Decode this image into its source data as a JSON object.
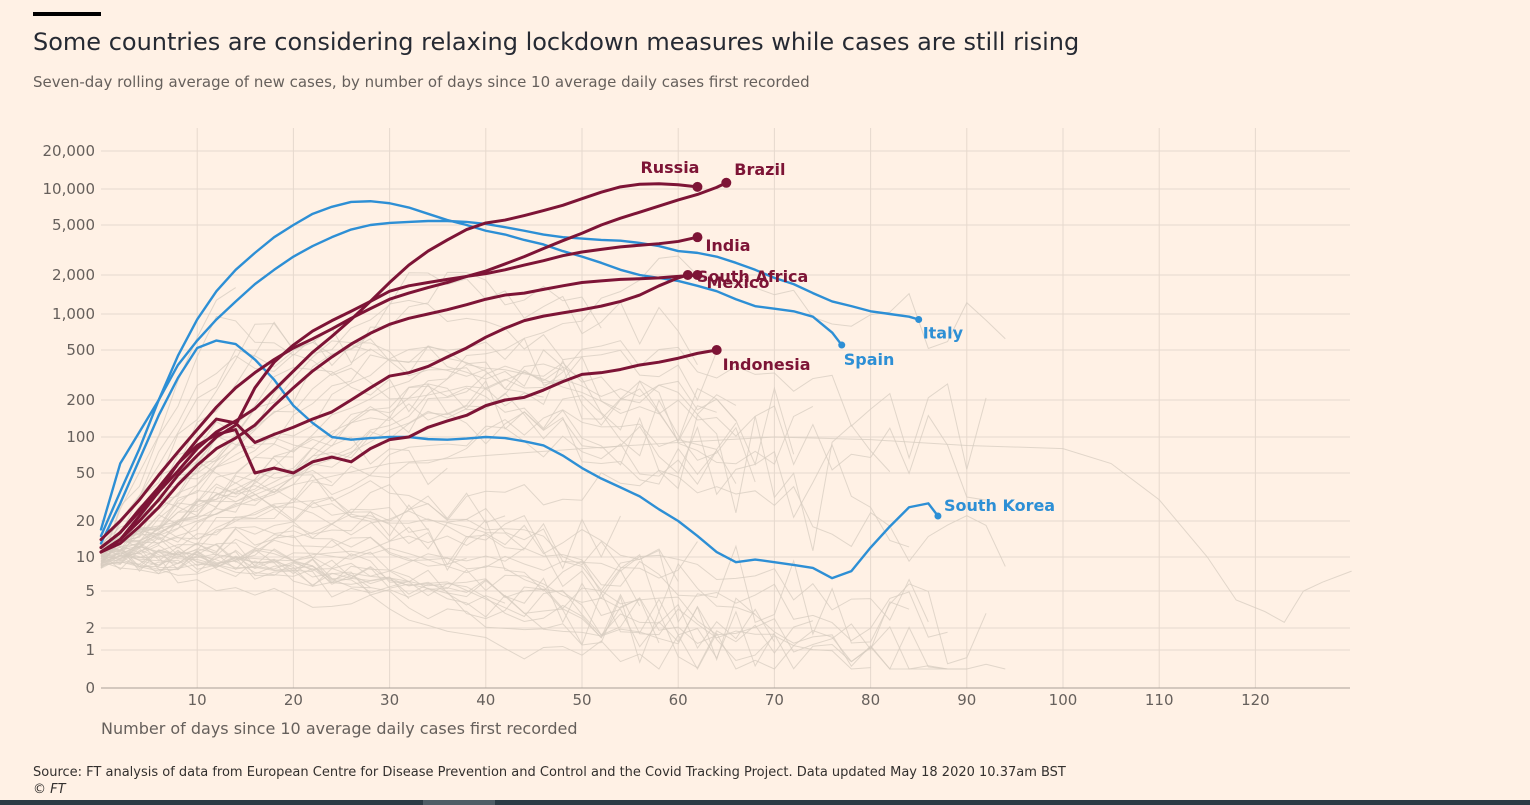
{
  "header": {
    "title": "Some countries are considering relaxing lockdown measures while cases are still rising",
    "subtitle": "Seven-day rolling average of new cases, by number of days since 10 average daily cases first recorded"
  },
  "footer": {
    "source": "Source: FT analysis of data from European Centre for Disease Prevention and Control and the Covid Tracking Project. Data updated May 18 2020 10.37am BST",
    "copyright": "© FT"
  },
  "colors": {
    "background": "#fff1e5",
    "highlight": "#7d1436",
    "comparison": "#2d8fd5",
    "background_lines": "#d7ccc0",
    "grid": "#e6d9ce",
    "axis": "#66605c"
  },
  "chart_data": {
    "type": "line",
    "title": "Some countries are considering relaxing lockdown measures while cases are still rising",
    "subtitle": "Seven-day rolling average of new cases, by number of days since 10 average daily cases first recorded",
    "xlabel": "Number of days since 10 average daily cases first recorded",
    "ylabel": "",
    "yscale": "log",
    "xlim": [
      0,
      130
    ],
    "ylim": [
      0,
      20000
    ],
    "x_ticks": [
      10,
      20,
      30,
      40,
      50,
      60,
      70,
      80,
      90,
      100,
      110,
      120
    ],
    "y_ticks": [
      {
        "value": 20000,
        "label": "20,000"
      },
      {
        "value": 10000,
        "label": "10,000"
      },
      {
        "value": 5000,
        "label": "5,000"
      },
      {
        "value": 2000,
        "label": "2,000"
      },
      {
        "value": 1000,
        "label": "1,000"
      },
      {
        "value": 500,
        "label": "500"
      },
      {
        "value": 200,
        "label": "200"
      },
      {
        "value": 100,
        "label": "100"
      },
      {
        "value": 50,
        "label": "50"
      },
      {
        "value": 20,
        "label": "20"
      },
      {
        "value": 10,
        "label": "10"
      },
      {
        "value": 5,
        "label": "5"
      },
      {
        "value": 2,
        "label": "2"
      },
      {
        "value": 1,
        "label": "1"
      },
      {
        "value": 0,
        "label": "0"
      }
    ],
    "highlighted_series": [
      {
        "name": "Russia",
        "group": "highlight",
        "x": [
          0,
          2,
          4,
          6,
          8,
          10,
          12,
          14,
          16,
          18,
          20,
          22,
          24,
          26,
          28,
          30,
          32,
          34,
          36,
          38,
          40,
          42,
          44,
          46,
          48,
          50,
          52,
          54,
          56,
          58,
          60,
          62
        ],
        "values": [
          12,
          16,
          24,
          35,
          52,
          80,
          110,
          135,
          170,
          240,
          340,
          480,
          650,
          900,
          1250,
          1750,
          2400,
          3100,
          3800,
          4600,
          5200,
          5500,
          6000,
          6600,
          7300,
          8300,
          9400,
          10400,
          10900,
          11000,
          10800,
          10400
        ]
      },
      {
        "name": "Brazil",
        "group": "highlight",
        "x": [
          0,
          2,
          4,
          6,
          8,
          10,
          12,
          14,
          16,
          18,
          20,
          22,
          24,
          26,
          28,
          30,
          32,
          34,
          36,
          38,
          40,
          42,
          44,
          46,
          48,
          50,
          52,
          54,
          56,
          58,
          60,
          62,
          64,
          65
        ],
        "values": [
          14,
          20,
          30,
          48,
          75,
          115,
          175,
          250,
          330,
          420,
          520,
          620,
          750,
          920,
          1100,
          1300,
          1450,
          1600,
          1750,
          1950,
          2150,
          2450,
          2800,
          3250,
          3750,
          4300,
          5000,
          5700,
          6400,
          7200,
          8100,
          9000,
          10300,
          11200
        ]
      },
      {
        "name": "India",
        "group": "highlight",
        "x": [
          0,
          2,
          4,
          6,
          8,
          10,
          12,
          14,
          16,
          18,
          20,
          22,
          24,
          26,
          28,
          30,
          32,
          34,
          36,
          38,
          40,
          42,
          44,
          46,
          48,
          50,
          52,
          54,
          56,
          58,
          60,
          62
        ],
        "values": [
          11,
          14,
          20,
          30,
          48,
          70,
          100,
          125,
          250,
          400,
          550,
          720,
          880,
          1050,
          1250,
          1500,
          1650,
          1750,
          1850,
          1950,
          2050,
          2200,
          2400,
          2600,
          2850,
          3050,
          3200,
          3350,
          3450,
          3550,
          3700,
          4000
        ]
      },
      {
        "name": "Mexico",
        "group": "highlight",
        "x": [
          0,
          2,
          4,
          6,
          8,
          10,
          12,
          14,
          16,
          18,
          20,
          22,
          24,
          26,
          28,
          30,
          32,
          34,
          36,
          38,
          40,
          42,
          44,
          46,
          48,
          50,
          52,
          54,
          56,
          58,
          60,
          62
        ],
        "values": [
          11,
          13,
          18,
          26,
          40,
          58,
          80,
          98,
          125,
          180,
          250,
          340,
          440,
          560,
          690,
          820,
          920,
          1000,
          1080,
          1180,
          1300,
          1400,
          1450,
          1550,
          1650,
          1750,
          1800,
          1850,
          1870,
          1900,
          1950,
          2000
        ]
      },
      {
        "name": "South Africa",
        "group": "highlight",
        "x": [
          0,
          2,
          4,
          6,
          8,
          10,
          12,
          14,
          16,
          18,
          20,
          22,
          24,
          26,
          28,
          30,
          32,
          34,
          36,
          38,
          40,
          42,
          44,
          46,
          48,
          50,
          52,
          54,
          56,
          58,
          60,
          61
        ],
        "values": [
          11,
          14,
          22,
          35,
          60,
          95,
          140,
          130,
          90,
          105,
          120,
          140,
          160,
          200,
          250,
          310,
          330,
          370,
          440,
          520,
          640,
          760,
          880,
          960,
          1020,
          1080,
          1150,
          1250,
          1400,
          1650,
          1900,
          2000
        ]
      },
      {
        "name": "Indonesia",
        "group": "highlight",
        "x": [
          0,
          2,
          4,
          6,
          8,
          10,
          12,
          14,
          16,
          18,
          20,
          22,
          24,
          26,
          28,
          30,
          32,
          34,
          36,
          38,
          40,
          42,
          44,
          46,
          48,
          50,
          52,
          54,
          56,
          58,
          60,
          62,
          64
        ],
        "values": [
          12,
          16,
          25,
          38,
          60,
          85,
          105,
          115,
          50,
          55,
          50,
          62,
          68,
          62,
          80,
          95,
          100,
          120,
          135,
          150,
          180,
          200,
          210,
          240,
          280,
          320,
          330,
          350,
          380,
          400,
          430,
          470,
          500
        ]
      },
      {
        "name": "Italy",
        "group": "comparison",
        "x": [
          0,
          2,
          4,
          6,
          8,
          10,
          12,
          14,
          16,
          18,
          20,
          22,
          24,
          26,
          28,
          30,
          32,
          34,
          36,
          38,
          40,
          42,
          44,
          46,
          48,
          50,
          52,
          54,
          56,
          58,
          60,
          62,
          64,
          66,
          68,
          70,
          72,
          74,
          76,
          78,
          80,
          82,
          84,
          85
        ],
        "values": [
          17,
          60,
          110,
          200,
          380,
          600,
          900,
          1250,
          1700,
          2200,
          2800,
          3400,
          4000,
          4600,
          5000,
          5200,
          5300,
          5400,
          5400,
          5300,
          5100,
          4800,
          4500,
          4200,
          4000,
          3900,
          3800,
          3750,
          3600,
          3400,
          3100,
          3000,
          2800,
          2500,
          2200,
          1900,
          1700,
          1450,
          1250,
          1150,
          1050,
          1000,
          950,
          900
        ]
      },
      {
        "name": "Spain",
        "group": "comparison",
        "x": [
          0,
          2,
          4,
          6,
          8,
          10,
          12,
          14,
          16,
          18,
          20,
          22,
          24,
          26,
          28,
          30,
          32,
          34,
          36,
          38,
          40,
          42,
          44,
          46,
          48,
          50,
          52,
          54,
          56,
          58,
          60,
          62,
          64,
          66,
          68,
          70,
          72,
          74,
          76,
          77
        ],
        "values": [
          15,
          35,
          80,
          200,
          450,
          900,
          1500,
          2200,
          3000,
          4000,
          5000,
          6200,
          7100,
          7800,
          7900,
          7600,
          7000,
          6200,
          5500,
          5000,
          4500,
          4200,
          3800,
          3500,
          3100,
          2800,
          2500,
          2200,
          2000,
          1900,
          1800,
          1650,
          1500,
          1300,
          1150,
          1100,
          1050,
          950,
          700,
          550
        ]
      },
      {
        "name": "South Korea",
        "group": "comparison",
        "x": [
          0,
          2,
          4,
          6,
          8,
          10,
          12,
          14,
          16,
          18,
          20,
          22,
          24,
          26,
          28,
          30,
          32,
          34,
          36,
          38,
          40,
          42,
          44,
          46,
          48,
          50,
          52,
          54,
          56,
          58,
          60,
          62,
          64,
          66,
          68,
          70,
          72,
          74,
          76,
          78,
          80,
          82,
          84,
          86,
          87
        ],
        "values": [
          13,
          28,
          65,
          150,
          300,
          520,
          600,
          560,
          420,
          290,
          180,
          130,
          100,
          95,
          98,
          100,
          100,
          96,
          95,
          97,
          100,
          98,
          92,
          85,
          70,
          55,
          45,
          38,
          32,
          25,
          20,
          15,
          11,
          9,
          9.5,
          9,
          8.5,
          8,
          6.5,
          7.5,
          12,
          18,
          26,
          28,
          22
        ]
      }
    ],
    "series_labels": [
      "Russia",
      "Brazil",
      "India",
      "Mexico",
      "South Africa",
      "Indonesia",
      "Italy",
      "Spain",
      "South Korea"
    ],
    "background_series_count": 60
  }
}
